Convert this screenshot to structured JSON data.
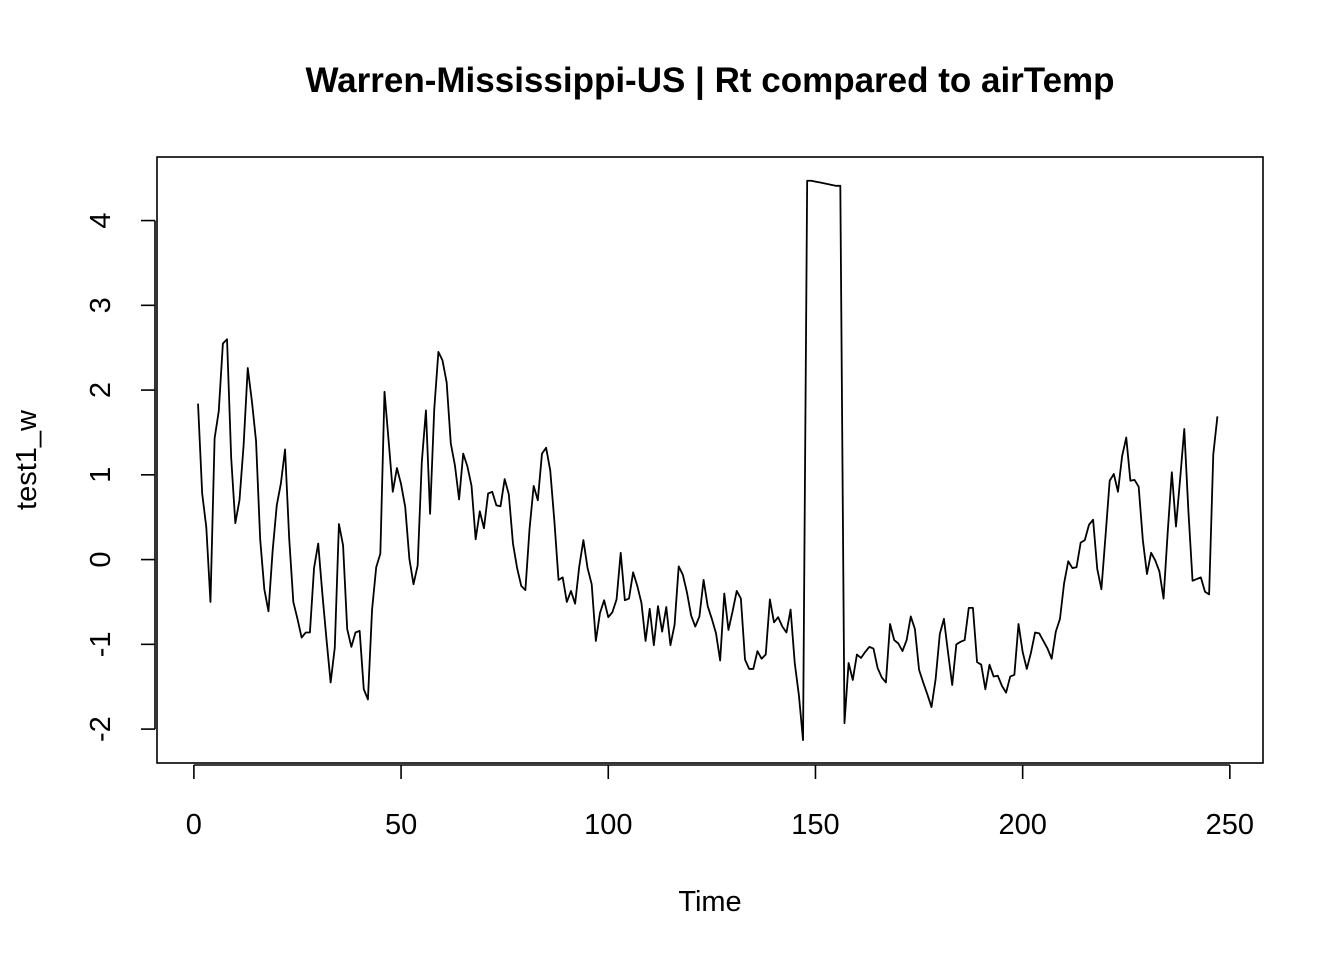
{
  "chart_data": {
    "type": "line",
    "title": "Warren-Mississippi-US | Rt compared to airTemp",
    "xlabel": "Time",
    "ylabel": "test1_w",
    "xlim": [
      -8.9,
      258
    ],
    "ylim": [
      -2.4,
      4.75
    ],
    "x_ticks": [
      0,
      50,
      100,
      150,
      200,
      250
    ],
    "y_ticks": [
      -2,
      -1,
      0,
      1,
      2,
      3,
      4
    ],
    "x_tick_labels": [
      "0",
      "50",
      "100",
      "150",
      "200",
      "250"
    ],
    "y_tick_labels": [
      "-2",
      "-1",
      "0",
      "1",
      "2",
      "3",
      "4"
    ],
    "grid": false,
    "legend": "none",
    "series": [
      {
        "color": "#000000",
        "x_start": 1,
        "x_step": 1,
        "values": [
          1.84,
          0.78,
          0.38,
          -0.5,
          1.43,
          1.75,
          2.55,
          2.6,
          1.2,
          0.43,
          0.7,
          1.35,
          2.26,
          1.87,
          1.4,
          0.24,
          -0.35,
          -0.61,
          0.1,
          0.64,
          0.9,
          1.3,
          0.25,
          -0.5,
          -0.7,
          -0.92,
          -0.86,
          -0.86,
          -0.1,
          0.19,
          -0.4,
          -0.94,
          -1.45,
          -1.04,
          0.42,
          0.17,
          -0.82,
          -1.03,
          -0.86,
          -0.84,
          -1.53,
          -1.65,
          -0.59,
          -0.09,
          0.07,
          1.98,
          1.4,
          0.8,
          1.08,
          0.89,
          0.62,
          0.01,
          -0.29,
          -0.07,
          1.15,
          1.76,
          0.54,
          1.77,
          2.45,
          2.35,
          2.09,
          1.37,
          1.11,
          0.71,
          1.25,
          1.1,
          0.87,
          0.24,
          0.57,
          0.37,
          0.78,
          0.8,
          0.64,
          0.63,
          0.95,
          0.77,
          0.19,
          -0.1,
          -0.31,
          -0.36,
          0.36,
          0.87,
          0.7,
          1.25,
          1.32,
          1.05,
          0.45,
          -0.24,
          -0.21,
          -0.5,
          -0.37,
          -0.52,
          -0.08,
          0.23,
          -0.1,
          -0.29,
          -0.96,
          -0.63,
          -0.48,
          -0.68,
          -0.62,
          -0.47,
          0.08,
          -0.48,
          -0.46,
          -0.15,
          -0.31,
          -0.51,
          -0.96,
          -0.58,
          -1.01,
          -0.55,
          -0.85,
          -0.56,
          -1.01,
          -0.77,
          -0.08,
          -0.18,
          -0.39,
          -0.66,
          -0.79,
          -0.67,
          -0.24,
          -0.55,
          -0.7,
          -0.87,
          -1.19,
          -0.4,
          -0.83,
          -0.61,
          -0.37,
          -0.46,
          -1.18,
          -1.29,
          -1.29,
          -1.08,
          -1.17,
          -1.12,
          -0.47,
          -0.74,
          -0.68,
          -0.79,
          -0.86,
          -0.59,
          -1.22,
          -1.6,
          -2.13,
          4.47,
          4.47,
          4.46,
          4.45,
          4.44,
          4.43,
          4.42,
          4.41,
          4.41,
          -1.93,
          -1.22,
          -1.42,
          -1.12,
          -1.16,
          -1.09,
          -1.03,
          -1.05,
          -1.28,
          -1.39,
          -1.45,
          -0.76,
          -0.95,
          -0.99,
          -1.08,
          -0.95,
          -0.67,
          -0.82,
          -1.3,
          -1.45,
          -1.59,
          -1.74,
          -1.41,
          -0.88,
          -0.7,
          -1.1,
          -1.48,
          -1.0,
          -0.97,
          -0.95,
          -0.57,
          -0.57,
          -1.21,
          -1.24,
          -1.53,
          -1.24,
          -1.38,
          -1.37,
          -1.49,
          -1.57,
          -1.38,
          -1.36,
          -0.76,
          -1.09,
          -1.29,
          -1.1,
          -0.86,
          -0.87,
          -0.96,
          -1.05,
          -1.17,
          -0.85,
          -0.7,
          -0.28,
          -0.02,
          -0.1,
          -0.09,
          0.2,
          0.23,
          0.41,
          0.47,
          -0.11,
          -0.35,
          0.28,
          0.93,
          1.01,
          0.8,
          1.22,
          1.44,
          0.93,
          0.94,
          0.86,
          0.23,
          -0.17,
          0.08,
          -0.01,
          -0.14,
          -0.46,
          0.32,
          1.03,
          0.39,
          0.95,
          1.54,
          0.57,
          -0.25,
          -0.23,
          -0.21,
          -0.38,
          -0.41,
          1.24,
          1.69
        ]
      }
    ]
  }
}
